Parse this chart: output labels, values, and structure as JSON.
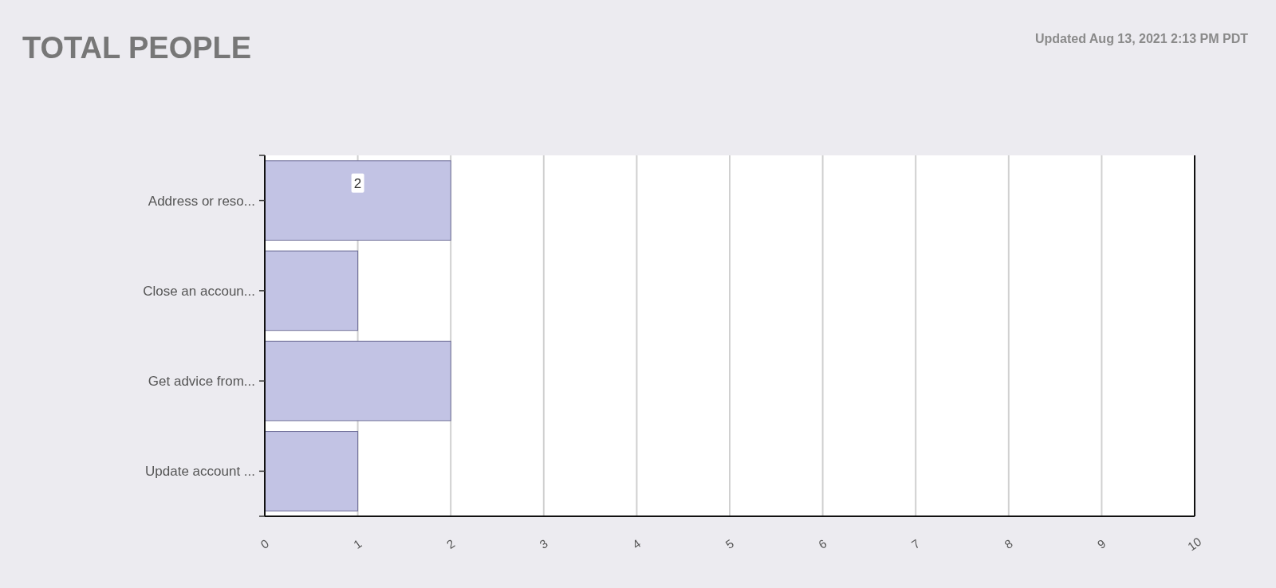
{
  "chart_data": {
    "type": "bar",
    "orientation": "horizontal",
    "title": "TOTAL PEOPLE",
    "annotations": [
      "Updated Aug 13, 2021 2:13 PM PDT"
    ],
    "categories": [
      "Address or reso...",
      "Close an accoun...",
      "Get advice from...",
      "Update account ..."
    ],
    "values": [
      2,
      1,
      2,
      1
    ],
    "value_labels": [
      "2",
      null,
      null,
      null
    ],
    "color": "#c2c3e4",
    "xlim": [
      0,
      10
    ],
    "xticks": [
      0,
      1,
      2,
      3,
      4,
      5,
      6,
      7,
      8,
      9,
      10
    ],
    "grid": "x"
  }
}
